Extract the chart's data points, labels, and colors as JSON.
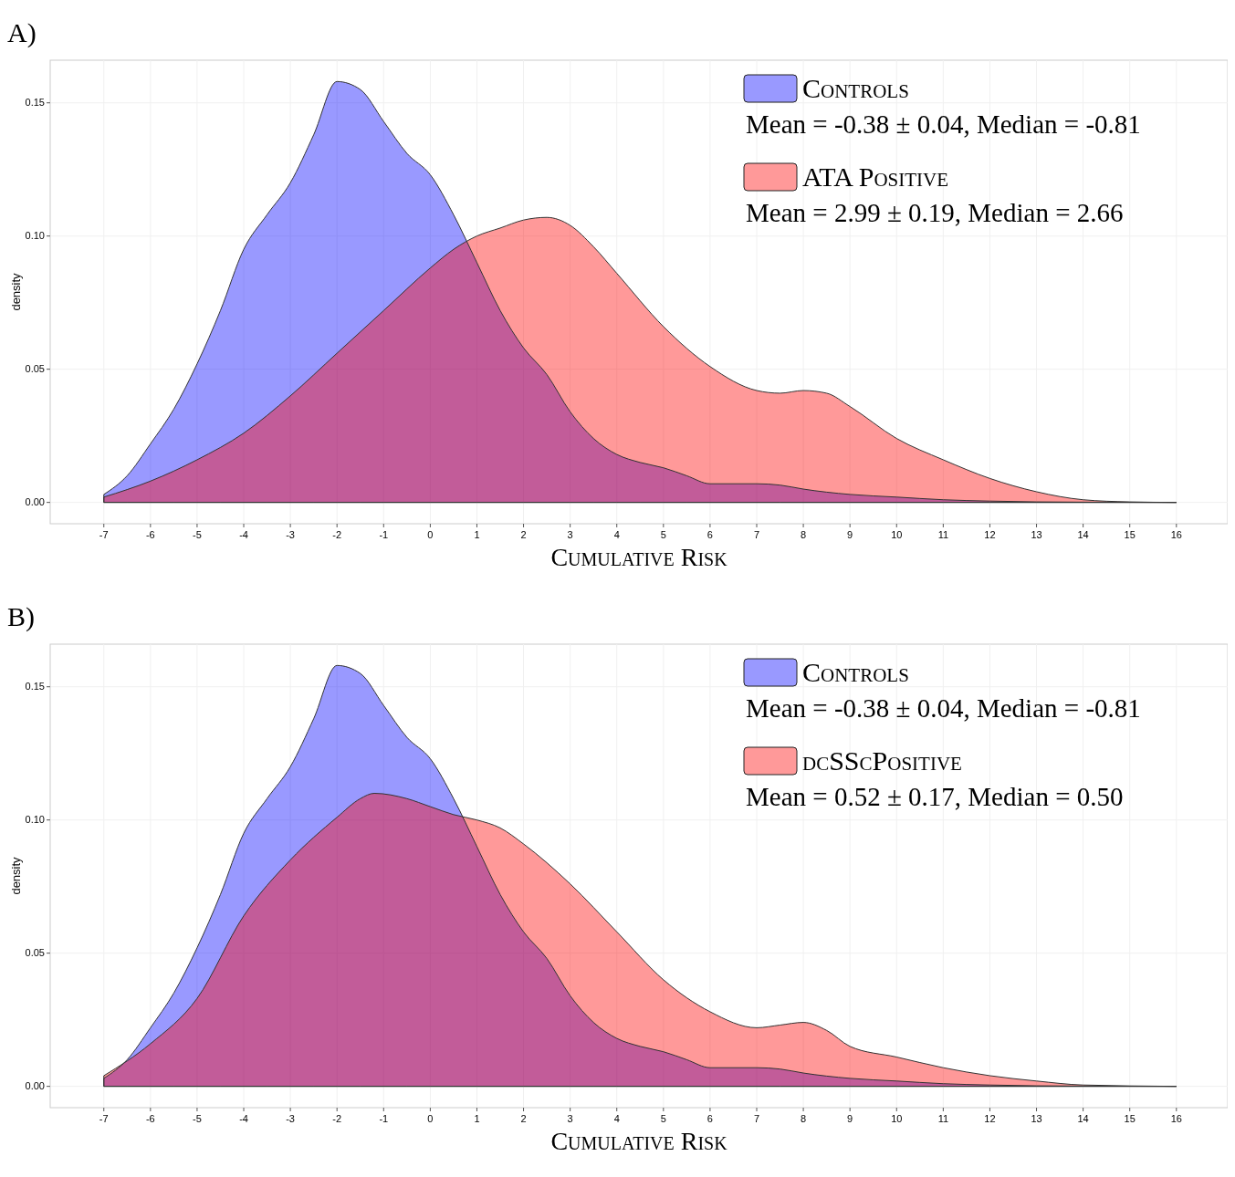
{
  "chart_data": [
    {
      "type": "area",
      "title": "A)",
      "xlabel": "Cumulative Risk",
      "ylabel": "density",
      "xlim": [
        -8.15,
        17.1
      ],
      "ylim": [
        -0.008,
        0.166
      ],
      "xticks": [
        -7,
        -6,
        -5,
        -4,
        -3,
        -2,
        -1,
        0,
        1,
        2,
        3,
        4,
        5,
        6,
        7,
        8,
        9,
        10,
        11,
        12,
        13,
        14,
        15,
        16
      ],
      "yticks": [
        {
          "value": 0,
          "label": "0.00"
        },
        {
          "value": 0.05,
          "label": "0.05"
        },
        {
          "value": 0.1,
          "label": "0.10"
        },
        {
          "value": 0.15,
          "label": "0.15"
        }
      ],
      "grid": true,
      "legend": "top right",
      "annotations": [
        "Mean = -0.38 ± 0.04, Median = -0.81",
        "Mean = 2.99 ± 0.19, Median = 2.66"
      ],
      "series": [
        {
          "name": "Controls",
          "color": "#9999ff",
          "x": [
            -7,
            -6.5,
            -6,
            -5.5,
            -5,
            -4.5,
            -4,
            -3.5,
            -3,
            -2.5,
            -2,
            -1.5,
            -1,
            -0.5,
            0,
            0.5,
            1,
            1.5,
            2,
            2.5,
            3,
            3.5,
            4,
            4.5,
            5,
            5.5,
            6,
            7,
            7.5,
            8,
            9,
            10,
            11,
            12,
            13,
            14,
            16
          ],
          "values": [
            0.003,
            0.01,
            0.022,
            0.035,
            0.052,
            0.072,
            0.095,
            0.108,
            0.12,
            0.138,
            0.158,
            0.155,
            0.143,
            0.131,
            0.123,
            0.108,
            0.09,
            0.072,
            0.058,
            0.048,
            0.034,
            0.024,
            0.018,
            0.015,
            0.013,
            0.01,
            0.007,
            0.007,
            0.0065,
            0.005,
            0.003,
            0.002,
            0.001,
            0.0005,
            0.0002,
            0.0001,
            0
          ]
        },
        {
          "name": "ATA Positive",
          "color": "#ff9999",
          "x": [
            -7,
            -6,
            -5,
            -4,
            -3,
            -2,
            -1,
            0,
            0.5,
            1,
            1.5,
            2,
            2.5,
            3,
            3.5,
            4,
            5,
            6,
            7,
            7.5,
            8,
            8.5,
            9,
            10,
            11,
            12,
            13,
            14,
            15,
            16
          ],
          "values": [
            0.002,
            0.008,
            0.016,
            0.026,
            0.04,
            0.056,
            0.072,
            0.088,
            0.095,
            0.1,
            0.103,
            0.106,
            0.107,
            0.104,
            0.096,
            0.086,
            0.066,
            0.051,
            0.042,
            0.041,
            0.042,
            0.041,
            0.036,
            0.024,
            0.016,
            0.009,
            0.004,
            0.001,
            0.0002,
            0
          ]
        }
      ]
    },
    {
      "type": "area",
      "title": "B)",
      "xlabel": "Cumulative Risk",
      "ylabel": "density",
      "xlim": [
        -8.15,
        17.1
      ],
      "ylim": [
        -0.008,
        0.166
      ],
      "xticks": [
        -7,
        -6,
        -5,
        -4,
        -3,
        -2,
        -1,
        0,
        1,
        2,
        3,
        4,
        5,
        6,
        7,
        8,
        9,
        10,
        11,
        12,
        13,
        14,
        15,
        16
      ],
      "yticks": [
        {
          "value": 0,
          "label": "0.00"
        },
        {
          "value": 0.05,
          "label": "0.05"
        },
        {
          "value": 0.1,
          "label": "0.10"
        },
        {
          "value": 0.15,
          "label": "0.15"
        }
      ],
      "grid": true,
      "legend": "top right",
      "annotations": [
        "Mean = -0.38 ± 0.04, Median = -0.81",
        "Mean = 0.52 ± 0.17, Median = 0.50"
      ],
      "series": [
        {
          "name": "Controls",
          "color": "#9999ff",
          "x": [
            -7,
            -6.5,
            -6,
            -5.5,
            -5,
            -4.5,
            -4,
            -3.5,
            -3,
            -2.5,
            -2,
            -1.5,
            -1,
            -0.5,
            0,
            0.5,
            1,
            1.5,
            2,
            2.5,
            3,
            3.5,
            4,
            4.5,
            5,
            5.5,
            6,
            7,
            7.5,
            8,
            9,
            10,
            11,
            12,
            13,
            14,
            16
          ],
          "values": [
            0.003,
            0.01,
            0.022,
            0.035,
            0.052,
            0.072,
            0.095,
            0.108,
            0.12,
            0.138,
            0.158,
            0.155,
            0.143,
            0.131,
            0.123,
            0.108,
            0.09,
            0.072,
            0.058,
            0.048,
            0.034,
            0.024,
            0.018,
            0.015,
            0.013,
            0.01,
            0.007,
            0.007,
            0.0065,
            0.005,
            0.003,
            0.002,
            0.001,
            0.0005,
            0.0002,
            0.0001,
            0
          ]
        },
        {
          "name": "dcSScPositive",
          "color": "#ff9999",
          "x": [
            -7,
            -6,
            -5,
            -4,
            -3,
            -2,
            -1.5,
            -1.2,
            -0.5,
            0,
            0.5,
            1,
            1.5,
            2,
            3,
            4,
            5,
            6,
            7,
            7.5,
            8,
            8.5,
            9,
            10,
            11,
            12,
            13,
            14,
            16
          ],
          "values": [
            0.004,
            0.016,
            0.033,
            0.064,
            0.085,
            0.101,
            0.108,
            0.11,
            0.108,
            0.105,
            0.102,
            0.1,
            0.097,
            0.091,
            0.076,
            0.058,
            0.04,
            0.028,
            0.022,
            0.023,
            0.024,
            0.021,
            0.015,
            0.011,
            0.007,
            0.004,
            0.002,
            0.0005,
            0
          ]
        }
      ]
    }
  ]
}
